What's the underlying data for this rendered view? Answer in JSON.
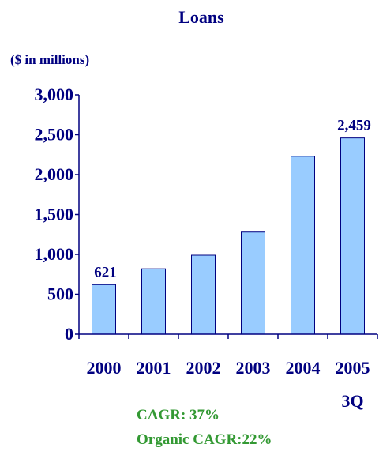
{
  "chart_data": {
    "type": "bar",
    "title": "Loans",
    "subtitle": "($ in millions)",
    "categories": [
      "2000",
      "2001",
      "2002",
      "2003",
      "2004",
      "2005"
    ],
    "category_sublabels": [
      "",
      "",
      "",
      "",
      "",
      "3Q"
    ],
    "values": [
      621,
      820,
      990,
      1280,
      2230,
      2459
    ],
    "data_labels": [
      "621",
      "",
      "",
      "",
      "",
      "2,459"
    ],
    "ylim": [
      0,
      3000
    ],
    "yticks": [
      0,
      500,
      1000,
      1500,
      2000,
      2500,
      3000
    ],
    "ytick_labels": [
      "0",
      "500",
      "1,000",
      "1,500",
      "2,000",
      "2,500",
      "3,000"
    ],
    "grid": false,
    "colors": {
      "bar_fill": "#99ccff",
      "bar_stroke": "#000080",
      "text": "#000080",
      "annotation": "#339933"
    }
  },
  "notes": {
    "cagr": "CAGR: 37%",
    "organic_cagr": "Organic CAGR:22%"
  }
}
